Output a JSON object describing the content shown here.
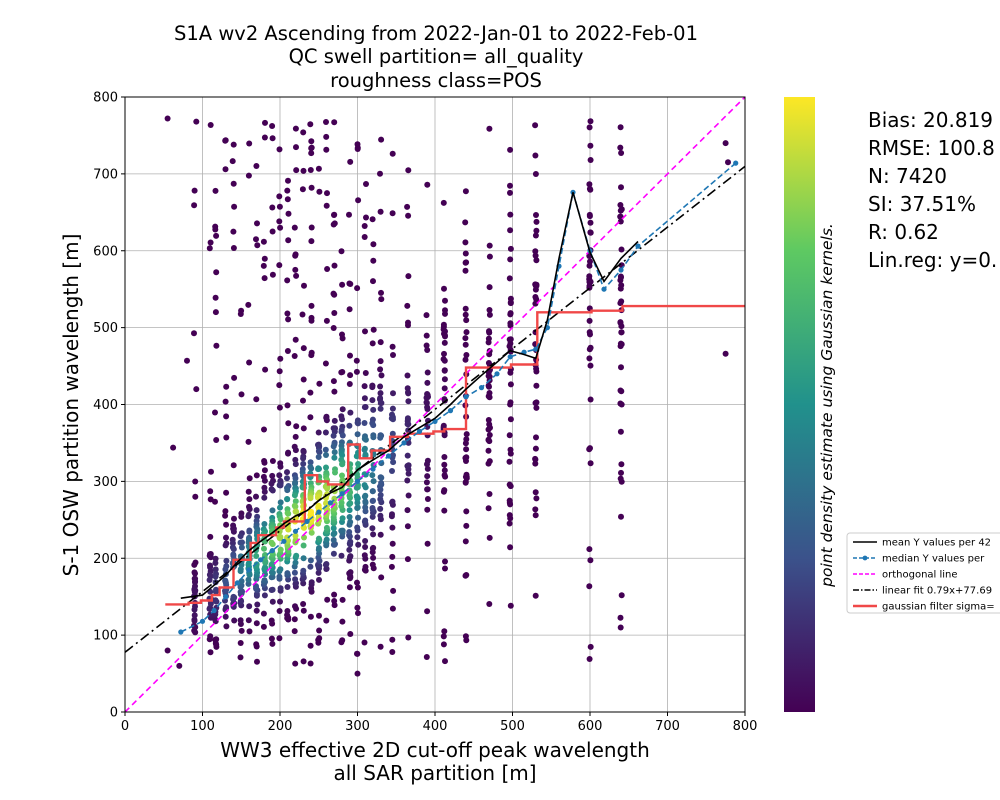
{
  "chart_data": {
    "type": "scatter",
    "title_lines": [
      "S1A wv2 Ascending from 2022-Jan-01 to 2022-Feb-01",
      "QC swell partition= all_quality",
      "roughness class=POS"
    ],
    "xlabel_lines": [
      "WW3 effective 2D cut-off peak wavelength",
      "all SAR partition [m]"
    ],
    "ylabel": "S-1 OSW partition wavelength [m]",
    "xlim": [
      0,
      800
    ],
    "ylim": [
      0,
      800
    ],
    "x_ticks": [
      "0",
      "100",
      "200",
      "300",
      "400",
      "500",
      "600",
      "700",
      "800"
    ],
    "y_ticks": [
      "0",
      "100",
      "200",
      "300",
      "400",
      "500",
      "600",
      "700",
      "800"
    ],
    "grid": true,
    "colorbar_label": "point density estimate using Gaussian kernels.",
    "colormap": [
      "#440154",
      "#3b528b",
      "#21918c",
      "#5ec962",
      "#fde725"
    ],
    "stats": [
      "Bias: 20.819",
      "RMSE: 100.8",
      "N: 7420",
      "SI: 37.51%",
      "R: 0.62",
      "Lin.reg: y=0."
    ],
    "legend_position": "right",
    "legend": [
      {
        "label": "mean Y values per 42",
        "color": "#000000",
        "style": "solid"
      },
      {
        "label": "median Y values per",
        "color": "#1f77b4",
        "style": "dashed-marker"
      },
      {
        "label": "orthogonal line",
        "color": "#ff00ff",
        "style": "dashed"
      },
      {
        "label": "linear fit 0.79x+77.69",
        "color": "#000000",
        "style": "dashdot"
      },
      {
        "label": "gaussian filter sigma=",
        "color": "#f04848",
        "style": "solid-thick"
      }
    ],
    "orthogonal_line": {
      "x": [
        0,
        800
      ],
      "y": [
        0,
        800
      ]
    },
    "linear_fit": {
      "slope": 0.79,
      "intercept": 77.69,
      "x": [
        0,
        800
      ]
    },
    "mean_series": {
      "x": [
        72,
        100,
        115,
        130,
        145,
        160,
        175,
        190,
        205,
        220,
        235,
        250,
        265,
        280,
        300,
        320,
        340,
        360,
        380,
        400,
        420,
        440,
        460,
        480,
        497,
        515,
        530,
        545,
        560,
        578,
        600,
        618,
        640,
        662
      ],
      "y": [
        148,
        152,
        165,
        178,
        195,
        210,
        222,
        233,
        245,
        255,
        262,
        275,
        285,
        292,
        315,
        328,
        340,
        358,
        370,
        382,
        400,
        420,
        438,
        455,
        470,
        465,
        460,
        510,
        590,
        676,
        598,
        560,
        590,
        612
      ]
    },
    "median_series": {
      "x": [
        72,
        100,
        115,
        130,
        145,
        160,
        175,
        190,
        205,
        220,
        235,
        250,
        265,
        280,
        300,
        320,
        340,
        360,
        380,
        400,
        420,
        440,
        460,
        480,
        497,
        515,
        530,
        545,
        560,
        578,
        600,
        618,
        640,
        662,
        788
      ],
      "y": [
        104,
        118,
        132,
        150,
        168,
        185,
        198,
        210,
        222,
        235,
        248,
        260,
        272,
        284,
        300,
        316,
        333,
        350,
        365,
        378,
        392,
        410,
        422,
        440,
        462,
        468,
        472,
        500,
        580,
        676,
        600,
        550,
        575,
        606,
        714
      ]
    },
    "gaussian_step": {
      "x": [
        52,
        82,
        82,
        98,
        98,
        112,
        112,
        122,
        122,
        140,
        140,
        162,
        162,
        172,
        172,
        195,
        195,
        205,
        205,
        232,
        232,
        248,
        248,
        262,
        262,
        288,
        288,
        303,
        303,
        318,
        318,
        342,
        342,
        365,
        365,
        398,
        398,
        412,
        412,
        440,
        440,
        498,
        498,
        532,
        532,
        602,
        602,
        642,
        642,
        800
      ],
      "y": [
        140,
        140,
        142,
        142,
        145,
        145,
        152,
        152,
        162,
        162,
        198,
        198,
        220,
        220,
        230,
        230,
        240,
        240,
        248,
        248,
        308,
        308,
        300,
        300,
        296,
        296,
        348,
        348,
        330,
        330,
        340,
        340,
        358,
        358,
        362,
        362,
        365,
        365,
        368,
        368,
        448,
        448,
        452,
        452,
        520,
        520,
        522,
        522,
        528,
        528
      ]
    },
    "point_columns_x": [
      90,
      110,
      117,
      130,
      140,
      150,
      160,
      170,
      180,
      190,
      200,
      210,
      220,
      230,
      240,
      250,
      260,
      270,
      280,
      290,
      300,
      310,
      320,
      330,
      345,
      365,
      390,
      412,
      440,
      470,
      497,
      530,
      600,
      640
    ],
    "outliers": [
      {
        "x": 55,
        "y": 772
      },
      {
        "x": 92,
        "y": 768
      },
      {
        "x": 80,
        "y": 457
      },
      {
        "x": 92,
        "y": 420
      },
      {
        "x": 62,
        "y": 344
      },
      {
        "x": 775,
        "y": 740
      },
      {
        "x": 778,
        "y": 715
      },
      {
        "x": 775,
        "y": 466
      },
      {
        "x": 640,
        "y": 311
      },
      {
        "x": 640,
        "y": 254
      },
      {
        "x": 497,
        "y": 252
      },
      {
        "x": 412,
        "y": 105
      },
      {
        "x": 300,
        "y": 50
      },
      {
        "x": 55,
        "y": 80
      },
      {
        "x": 70,
        "y": 60
      }
    ]
  }
}
